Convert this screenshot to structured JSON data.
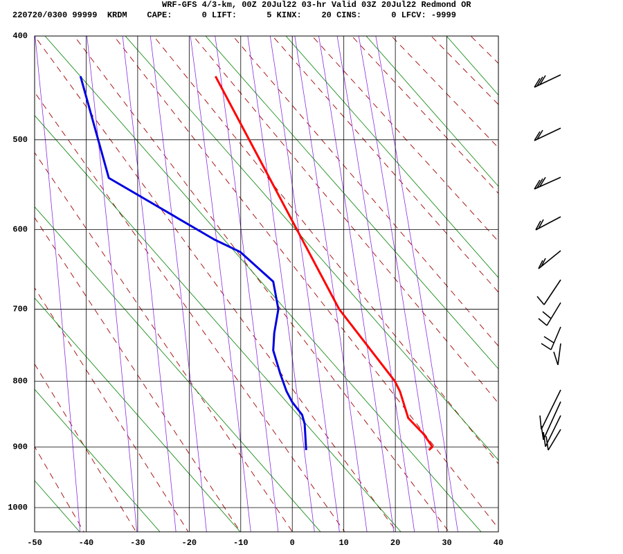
{
  "chart_data": {
    "type": "skewt",
    "title": "WRF-GFS 4/3-km, 00Z 20Jul22 03-hr Valid 03Z 20Jul22 Redmond OR",
    "subtitle": "220720/0300 99999  KRDM    CAPE:      0 LIFT:      5 KINX:    20 CINS:      0 LFCV: -9999",
    "xlim": [
      -50,
      40
    ],
    "xticks": [
      -50,
      -40,
      -30,
      -20,
      -10,
      0,
      10,
      20,
      30,
      40
    ],
    "ylim": [
      400,
      1042
    ],
    "yticks": [
      400,
      500,
      600,
      700,
      800,
      900,
      1000
    ],
    "grid": true,
    "series": [
      {
        "color": "#ff0000",
        "pressure": [
          437,
          700,
          800,
          815,
          855,
          880,
          900,
          905
        ],
        "values": [
          -14.9,
          9.1,
          19.9,
          20.9,
          22.5,
          25.5,
          27.2,
          26.5
        ]
      },
      {
        "color": "#0000e0",
        "pressure": [
          437,
          541,
          612,
          627,
          664,
          700,
          732,
          756,
          790,
          815,
          831,
          850,
          864,
          905
        ],
        "values": [
          -41.1,
          -35.6,
          -15.1,
          -10.1,
          -3.7,
          -2.7,
          -3.5,
          -3.7,
          -2.3,
          -1.1,
          0.0,
          1.9,
          2.4,
          2.7
        ]
      }
    ]
  }
}
